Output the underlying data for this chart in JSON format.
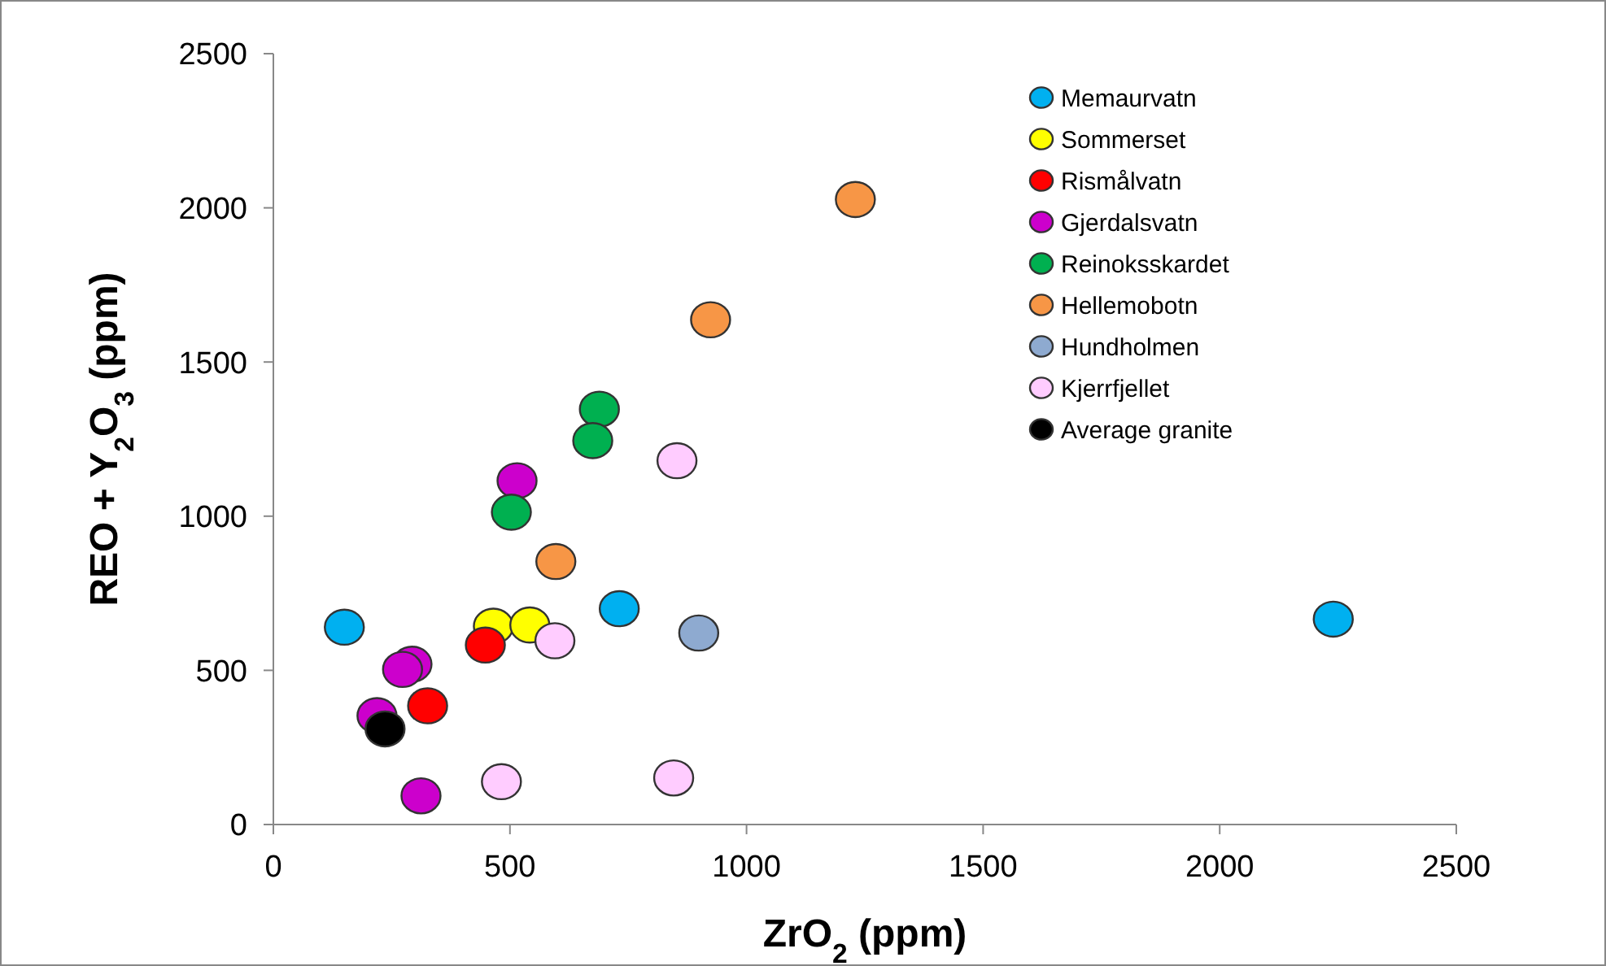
{
  "chart_data": {
    "type": "scatter",
    "xlabel": "ZrO$_{2}$ (ppm)",
    "ylabel": "REO + Y$_{2}$O$_{3}$ (ppm)",
    "xlim": [
      0,
      2500
    ],
    "ylim": [
      0,
      2500
    ],
    "xticks": [
      0,
      500,
      1000,
      1500,
      2000,
      2500
    ],
    "yticks": [
      0,
      500,
      1000,
      1500,
      2000,
      2500
    ],
    "grid": false,
    "legend": "top right",
    "marker": "circle",
    "series": [
      {
        "name": "Memaurvatn",
        "color": "#00b0f0",
        "x": [
          150,
          731,
          2240
        ],
        "values": [
          640,
          700,
          666
        ]
      },
      {
        "name": "Sommerset",
        "color": "#ffff00",
        "x": [
          465,
          542
        ],
        "values": [
          643,
          647
        ]
      },
      {
        "name": "Rismålvatn",
        "color": "#ff0000",
        "x": [
          448,
          326
        ],
        "values": [
          582,
          385
        ]
      },
      {
        "name": "Gjerdalsvatn",
        "color": "#cc00cc",
        "x": [
          293,
          273,
          219,
          312,
          515
        ],
        "values": [
          520,
          503,
          353,
          93,
          1115
        ]
      },
      {
        "name": "Reinoksskardet",
        "color": "#00b050",
        "x": [
          503,
          689,
          675
        ],
        "values": [
          1013,
          1347,
          1245
        ]
      },
      {
        "name": "Hellemobotn",
        "color": "#f79646",
        "x": [
          597,
          924,
          1230
        ],
        "values": [
          853,
          1637,
          2027
        ]
      },
      {
        "name": "Hundholmen",
        "color": "#8eaad0",
        "x": [
          899
        ],
        "values": [
          621
        ]
      },
      {
        "name": "Kjerrfjellet",
        "color": "#ffccff",
        "x": [
          482,
          846,
          595,
          853
        ],
        "values": [
          139,
          151,
          596,
          1180
        ]
      },
      {
        "name": "Average granite",
        "color": "#000000",
        "x": [
          236
        ],
        "values": [
          310
        ]
      }
    ]
  }
}
